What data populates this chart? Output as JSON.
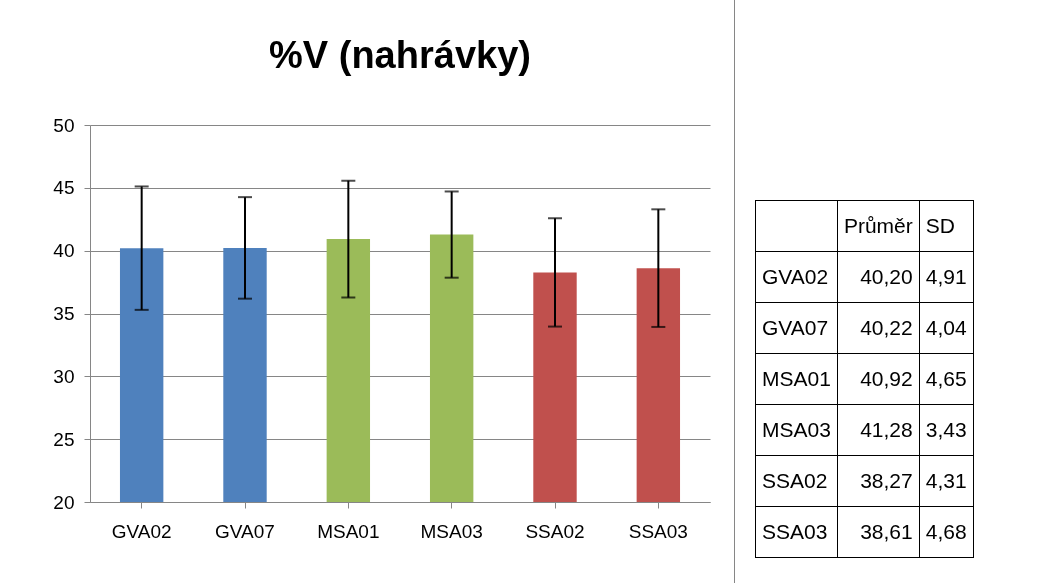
{
  "chart_data": {
    "type": "bar",
    "title": "%V (nahrávky)",
    "categories": [
      "GVA02",
      "GVA07",
      "MSA01",
      "MSA03",
      "SSA02",
      "SSA03"
    ],
    "values": [
      40.2,
      40.22,
      40.92,
      41.28,
      38.27,
      38.61
    ],
    "errors": [
      4.91,
      4.04,
      4.65,
      3.43,
      4.31,
      4.68
    ],
    "colors": [
      "#4f81bd",
      "#4f81bd",
      "#9bbb59",
      "#9bbb59",
      "#c0504d",
      "#c0504d"
    ],
    "annotations": [
      "Průměr",
      "SD",
      "40,20",
      "40,22",
      "40,92",
      "41,28",
      "38,27",
      "38,61",
      "4,91",
      "4,04",
      "4,65",
      "3,43",
      "4,31",
      "4,68"
    ],
    "ylim": [
      20,
      50
    ],
    "yticks": [
      20,
      25,
      30,
      35,
      40,
      45,
      50
    ],
    "grid": "y",
    "legend": false
  }
}
